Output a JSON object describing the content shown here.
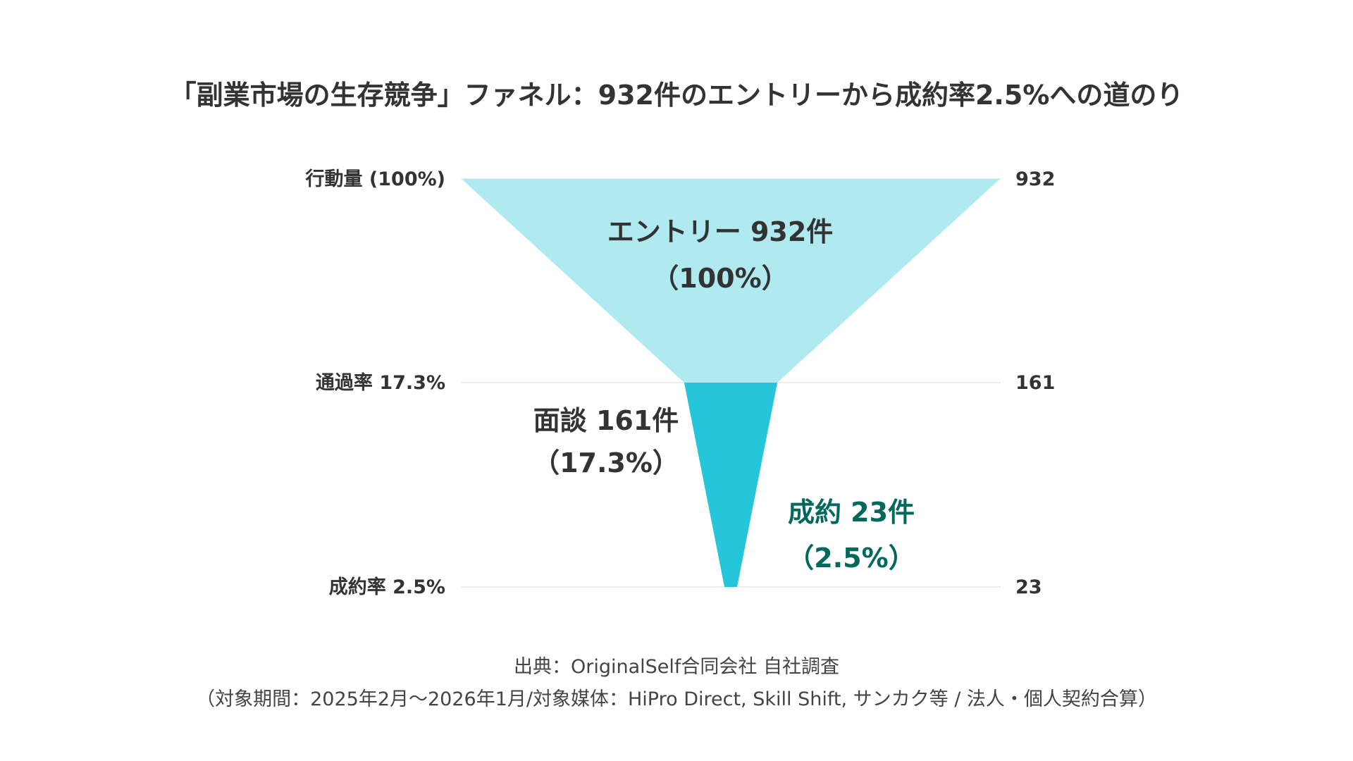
{
  "chart_data": {
    "type": "funnel",
    "title": "「副業市場の生存競争」ファネル：932件のエントリーから成約率2.5%への道のり",
    "stages": [
      {
        "name": "エントリー",
        "count": 932,
        "percent": 100,
        "label": "エントリー 932件",
        "percent_label": "（100%）",
        "left_axis_label": "行動量 (100%)",
        "right_axis_label": "932",
        "color": "#b0eaf1",
        "label_color": "#333333"
      },
      {
        "name": "面談",
        "count": 161,
        "percent": 17.3,
        "label": "面談 161件",
        "percent_label": "（17.3%）",
        "left_axis_label": "通過率 17.3%",
        "right_axis_label": "161",
        "color": "#26c6da",
        "label_color": "#333333"
      },
      {
        "name": "成約",
        "count": 23,
        "percent": 2.5,
        "label": "成約 23件",
        "percent_label": "（2.5%）",
        "left_axis_label": "成約率 2.5%",
        "right_axis_label": "23",
        "color": "#26c6da",
        "label_color": "#00695c"
      }
    ],
    "grid": true,
    "grid_color": "#e0e0e0"
  },
  "source": {
    "line1": "出典：OriginalSelf合同会社 自社調査",
    "line2": "（対象期間：2025年2月〜2026年1月/対象媒体：HiPro Direct, Skill Shift, サンカク等 / 法人・個人契約合算）"
  }
}
